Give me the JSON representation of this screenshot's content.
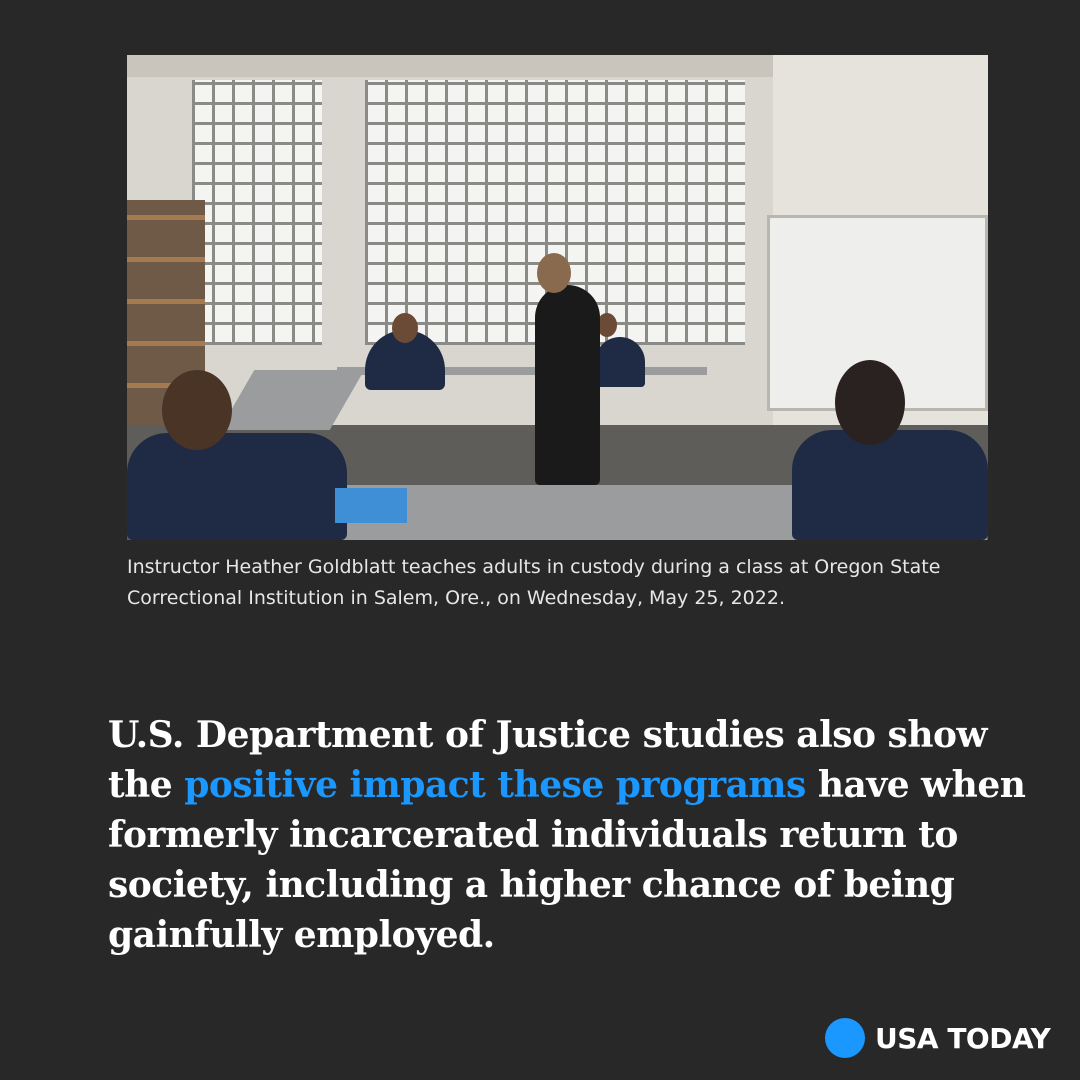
{
  "photo": {
    "description_alt": "Classroom at Oregon State Correctional Institution"
  },
  "caption": "Instructor Heather Goldblatt teaches adults in custody during a class at Oregon State Correctional Institution in Salem, Ore., on Wednesday, May 25, 2022.",
  "headline": {
    "before": "U.S. Department of Justice studies also show the ",
    "highlight": "positive impact these programs",
    "after": " have when formerly incarcerated individuals return to society, including a higher chance of being gainfully employed."
  },
  "brand": {
    "name": "USA TODAY",
    "accent_color": "#1a98ff",
    "background_color": "#282828"
  }
}
